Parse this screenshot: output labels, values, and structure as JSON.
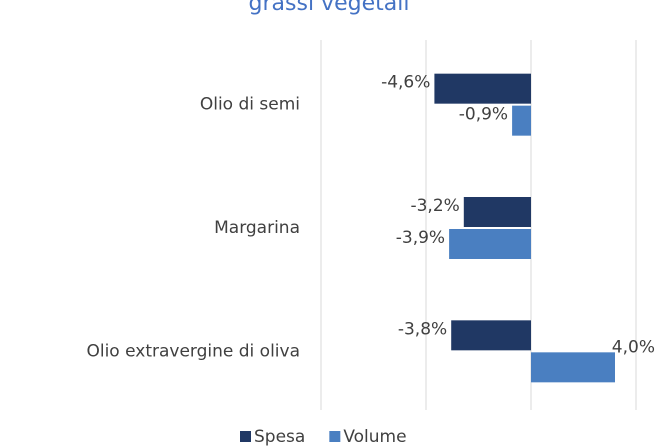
{
  "chart_data": {
    "type": "bar",
    "orientation": "horizontal",
    "title": "grassi vegetali",
    "categories": [
      "Olio di semi",
      "Margarina",
      "Olio extravergine di oliva"
    ],
    "series": [
      {
        "name": "Spesa",
        "color": "#203864",
        "values": [
          -4.6,
          -3.2,
          -3.8
        ],
        "value_labels": [
          "-4,6%",
          "-3,2%",
          "-3,8%"
        ]
      },
      {
        "name": "Volume",
        "color": "#4a7fc1",
        "values": [
          -0.9,
          -3.9,
          4.0
        ],
        "value_labels": [
          "-0,9%",
          "-3,9%",
          "4,0%"
        ]
      }
    ],
    "xlim": [
      -10,
      5
    ],
    "xticks": [
      -10,
      -5,
      0,
      5
    ],
    "grid": true,
    "legend": "bottom"
  }
}
